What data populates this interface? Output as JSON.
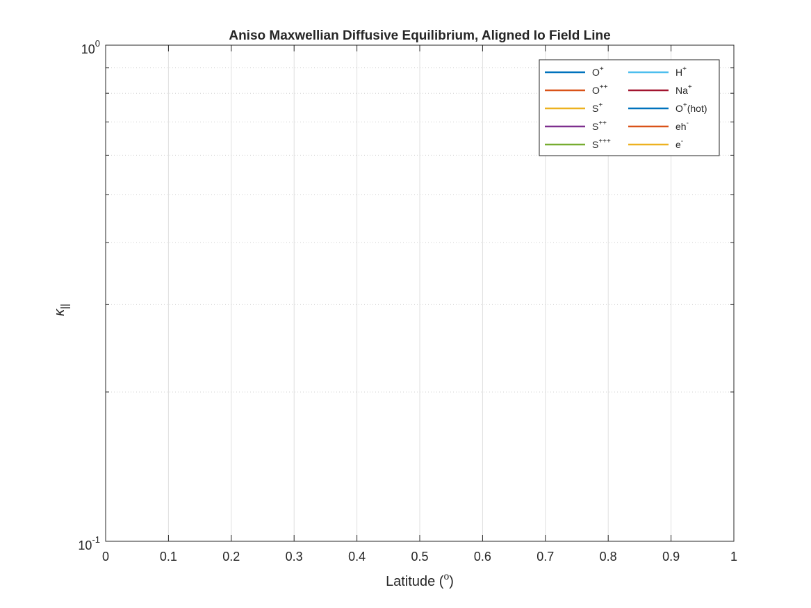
{
  "chart_data": {
    "type": "line",
    "title": "Aniso Maxwellian Diffusive Equilibrium, Aligned Io Field Line",
    "xlabel": {
      "base": "Latitude (",
      "sup": "o",
      "tail": ")"
    },
    "ylabel": {
      "base": "κ",
      "sub": "||"
    },
    "xlim": [
      0,
      1
    ],
    "ylim": [
      0.1,
      1
    ],
    "yscale": "log",
    "grid": true,
    "legend_position": "top-right",
    "x_ticks": [
      "0",
      "0.1",
      "0.2",
      "0.3",
      "0.4",
      "0.5",
      "0.6",
      "0.7",
      "0.8",
      "0.9",
      "1"
    ],
    "y_ticks": [
      {
        "base": "10",
        "exp": "-1"
      },
      {
        "base": "10",
        "exp": "0"
      }
    ],
    "series": [
      {
        "name": "O",
        "sup": "+",
        "tail": "",
        "color": "#0072BD",
        "values": []
      },
      {
        "name": "O",
        "sup": "++",
        "tail": "",
        "color": "#D95319",
        "values": []
      },
      {
        "name": "S",
        "sup": "+",
        "tail": "",
        "color": "#EDB120",
        "values": []
      },
      {
        "name": "S",
        "sup": "++",
        "tail": "",
        "color": "#7E2F8E",
        "values": []
      },
      {
        "name": "S",
        "sup": "+++",
        "tail": "",
        "color": "#77AC30",
        "values": []
      },
      {
        "name": "H",
        "sup": "+",
        "tail": "",
        "color": "#4DBEEE",
        "values": []
      },
      {
        "name": "Na",
        "sup": "+",
        "tail": "",
        "color": "#A2142F",
        "values": []
      },
      {
        "name": "O",
        "sup": "+",
        "tail": "(hot)",
        "color": "#0072BD",
        "values": []
      },
      {
        "name": "eh",
        "sup": "-",
        "tail": "",
        "color": "#D95319",
        "values": []
      },
      {
        "name": "e",
        "sup": "-",
        "tail": "",
        "color": "#EDB120",
        "values": []
      }
    ]
  }
}
